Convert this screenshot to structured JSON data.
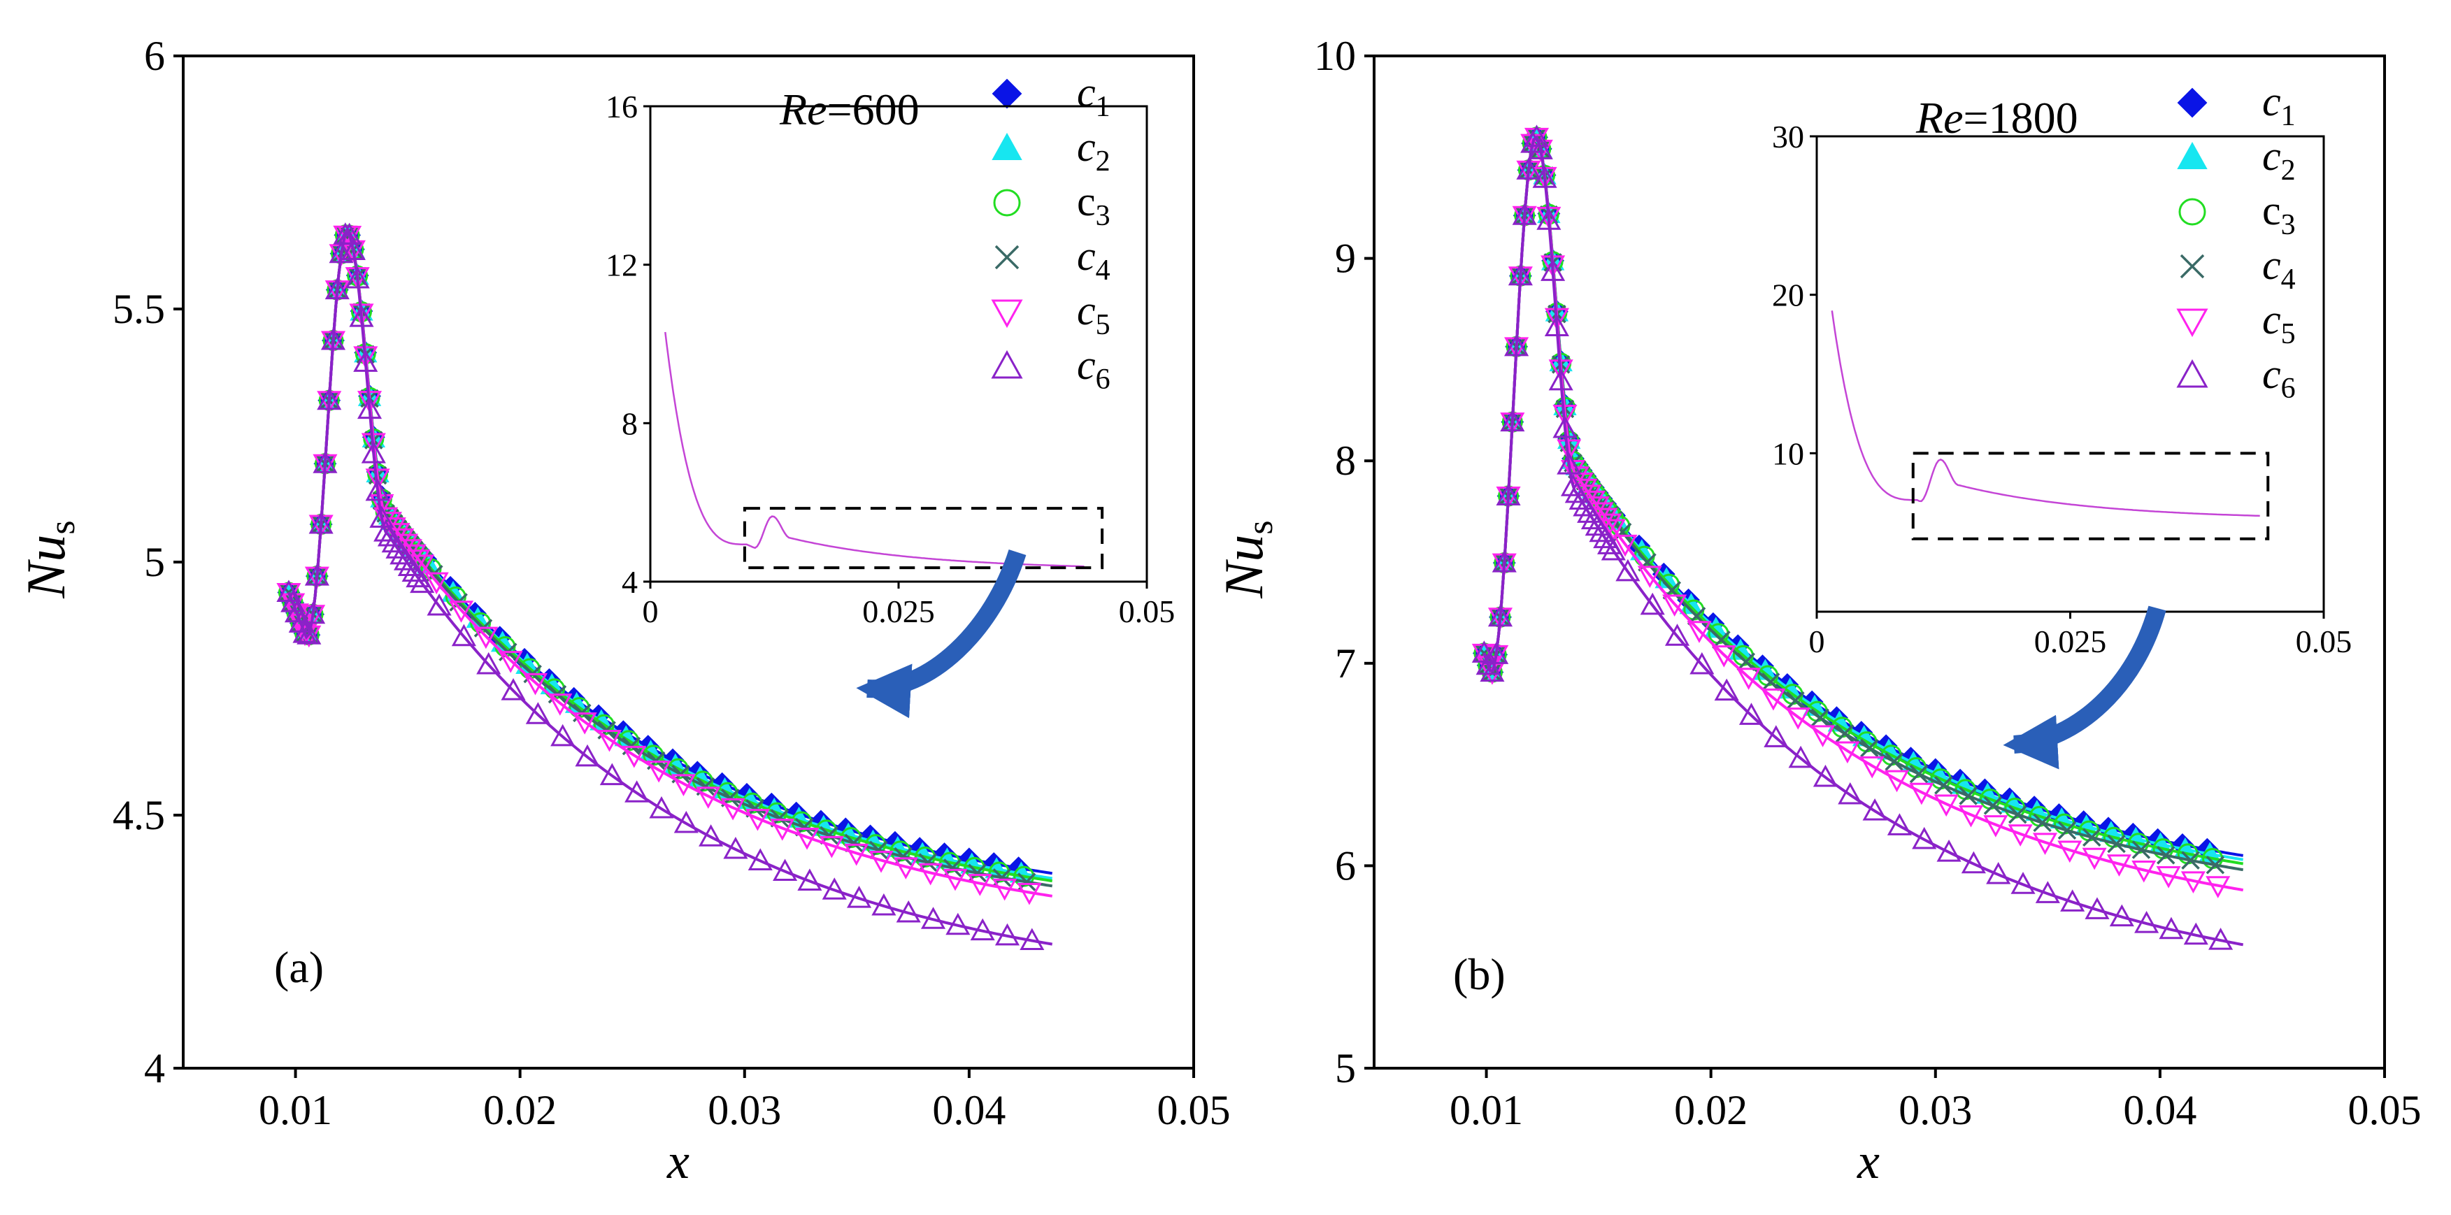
{
  "figure": {
    "description_panels": [
      "a",
      "b"
    ]
  },
  "series_styles": [
    {
      "key": "c1",
      "legend_base": "c",
      "legend_sub": "1",
      "italic": true,
      "marker": "diamond-filled",
      "color": "#0a14e6"
    },
    {
      "key": "c2",
      "legend_base": "c",
      "legend_sub": "2",
      "italic": true,
      "marker": "triangle-filled",
      "color": "#17e6f0"
    },
    {
      "key": "c3",
      "legend_base": "c",
      "legend_sub": "3",
      "italic": false,
      "marker": "circle-open",
      "color": "#22dd22"
    },
    {
      "key": "c4",
      "legend_base": "c",
      "legend_sub": "4",
      "italic": true,
      "marker": "x",
      "color": "#3a6a66"
    },
    {
      "key": "c5",
      "legend_base": "c",
      "legend_sub": "5",
      "italic": true,
      "marker": "triangle-down-open",
      "color": "#ff22ee"
    },
    {
      "key": "c6",
      "legend_base": "c",
      "legend_sub": "6",
      "italic": true,
      "marker": "triangle-open",
      "color": "#8a22c8"
    }
  ],
  "chart_data": [
    {
      "type": "line",
      "panel_label": "(a)",
      "re_label": "Re",
      "re_value": "=600",
      "xlabel": "x",
      "ylabel_main": "Nu",
      "ylabel_sub": "s",
      "xlim": [
        0.005,
        0.05
      ],
      "ylim": [
        4,
        6
      ],
      "xticks": [
        "0.01",
        "0.02",
        "0.03",
        "0.04",
        "0.05"
      ],
      "yticks": [
        "4",
        "4.5",
        "5",
        "5.5",
        "6"
      ],
      "shape": {
        "x0": 0.0097,
        "y0": 4.94,
        "y_min": 4.85,
        "x_min": 0.0105,
        "y_peak": 5.65,
        "x_peak": 0.0123,
        "x_end": 0.0437
      },
      "series": [
        {
          "name": "c1",
          "y_end": 4.385
        },
        {
          "name": "c2",
          "y_end": 4.375
        },
        {
          "name": "c3",
          "y_end": 4.37
        },
        {
          "name": "c4",
          "y_end": 4.36
        },
        {
          "name": "c5",
          "y_end": 4.34
        },
        {
          "name": "c6",
          "y_end": 4.245
        }
      ],
      "inset": {
        "xlim": [
          0,
          0.05
        ],
        "ylim": [
          4,
          16
        ],
        "xticks": [
          "0",
          "0.025",
          "0.05"
        ],
        "yticks": [
          "4",
          "8",
          "12",
          "16"
        ],
        "start": [
          0.0015,
          10.3
        ],
        "zoom_box": {
          "x": [
            0.0095,
            0.0455
          ],
          "y": [
            4.35,
            5.85
          ]
        }
      }
    },
    {
      "type": "line",
      "panel_label": "(b)",
      "re_label": "Re",
      "re_value": "=1800",
      "xlabel": "x",
      "ylabel_main": "Nu",
      "ylabel_sub": "s",
      "xlim": [
        0.005,
        0.05
      ],
      "ylim": [
        5,
        10
      ],
      "xticks": [
        "0.01",
        "0.02",
        "0.03",
        "0.04",
        "0.05"
      ],
      "yticks": [
        "5",
        "6",
        "7",
        "8",
        "9",
        "10"
      ],
      "shape": {
        "x0": 0.0099,
        "y0": 7.05,
        "y_min": 6.95,
        "x_min": 0.0102,
        "y_peak": 9.6,
        "x_peak": 0.0122,
        "x_end": 0.0437
      },
      "series": [
        {
          "name": "c1",
          "y_end": 6.05
        },
        {
          "name": "c2",
          "y_end": 6.03
        },
        {
          "name": "c3",
          "y_end": 6.01
        },
        {
          "name": "c4",
          "y_end": 5.98
        },
        {
          "name": "c5",
          "y_end": 5.88
        },
        {
          "name": "c6",
          "y_end": 5.61
        }
      ],
      "inset": {
        "xlim": [
          0,
          0.05
        ],
        "ylim": [
          0,
          30
        ],
        "xticks": [
          "0",
          "0.025",
          "0.05"
        ],
        "yticks": [
          "10",
          "20",
          "30"
        ],
        "start": [
          0.0015,
          19.0
        ],
        "zoom_box": {
          "x": [
            0.0095,
            0.0445
          ],
          "y": [
            4.6,
            10.0
          ]
        }
      }
    }
  ]
}
